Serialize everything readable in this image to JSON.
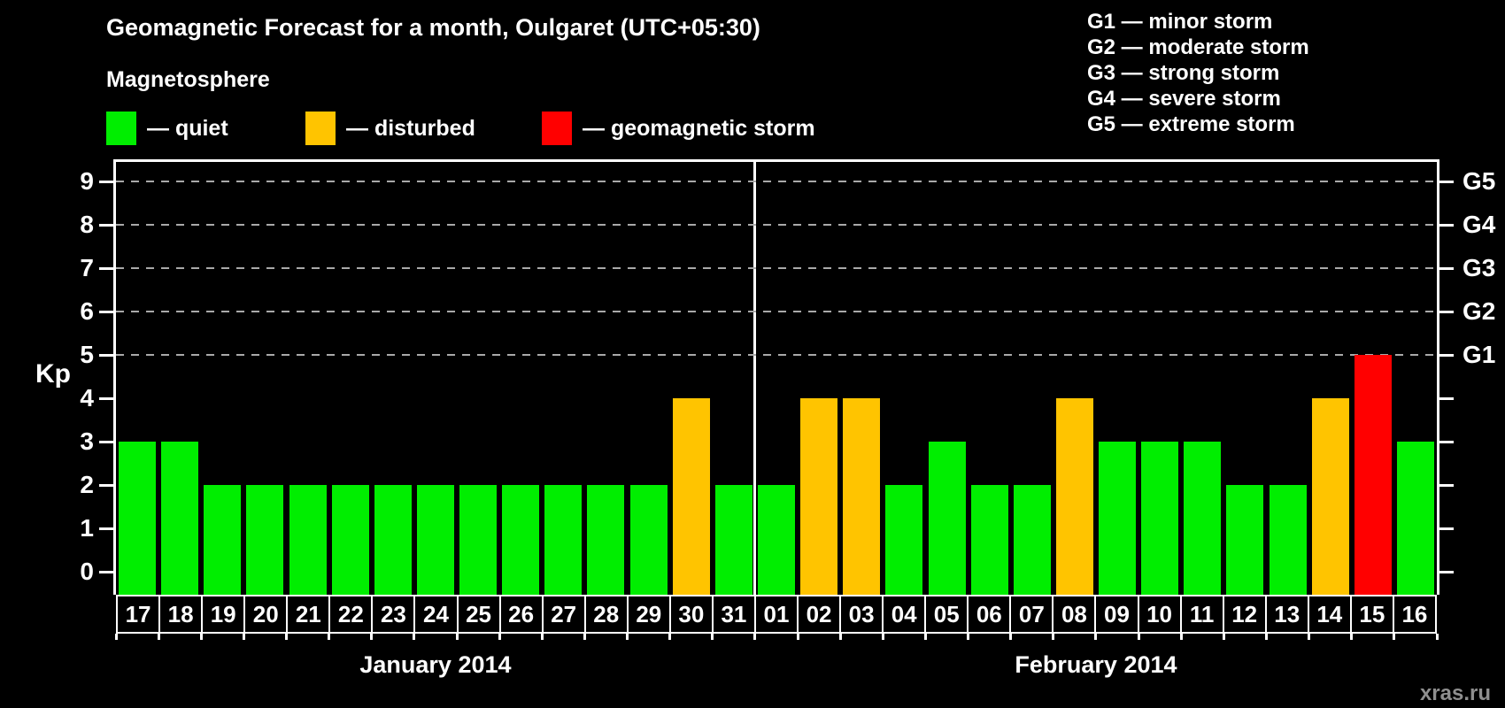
{
  "title": "Geomagnetic Forecast for a month, Oulgaret (UTC+05:30)",
  "legend": {
    "heading": "Magnetosphere",
    "items": [
      {
        "state": "quiet",
        "label": "— quiet",
        "color": "#00ee00"
      },
      {
        "state": "disturbed",
        "label": "— disturbed",
        "color": "#ffc400"
      },
      {
        "state": "storm",
        "label": "— geomagnetic storm",
        "color": "#ff0000"
      }
    ]
  },
  "storm_scale": [
    "G1 — minor storm",
    "G2 — moderate storm",
    "G3 — strong storm",
    "G4 — severe storm",
    "G5 — extreme storm"
  ],
  "watermark": "xras.ru",
  "chart_data": {
    "type": "bar",
    "ylabel": "Kp",
    "ylim": [
      0,
      9
    ],
    "yticks": [
      0,
      1,
      2,
      3,
      4,
      5,
      6,
      7,
      8,
      9
    ],
    "gridlines_at": [
      5,
      6,
      7,
      8,
      9
    ],
    "grid": "dashed, only at Kp 5-9",
    "right_axis": [
      {
        "kp": 5,
        "label": "G1"
      },
      {
        "kp": 6,
        "label": "G2"
      },
      {
        "kp": 7,
        "label": "G3"
      },
      {
        "kp": 8,
        "label": "G4"
      },
      {
        "kp": 9,
        "label": "G5"
      }
    ],
    "colors": {
      "quiet": "#00ee00",
      "disturbed": "#ffc400",
      "storm": "#ff0000"
    },
    "groups": [
      {
        "label": "January 2014",
        "days": [
          "17",
          "18",
          "19",
          "20",
          "21",
          "22",
          "23",
          "24",
          "25",
          "26",
          "27",
          "28",
          "29",
          "30",
          "31"
        ],
        "values": [
          3,
          3,
          2,
          2,
          2,
          2,
          2,
          2,
          2,
          2,
          2,
          2,
          2,
          4,
          2
        ],
        "states": [
          "quiet",
          "quiet",
          "quiet",
          "quiet",
          "quiet",
          "quiet",
          "quiet",
          "quiet",
          "quiet",
          "quiet",
          "quiet",
          "quiet",
          "quiet",
          "disturbed",
          "quiet"
        ]
      },
      {
        "label": "February 2014",
        "days": [
          "01",
          "02",
          "03",
          "04",
          "05",
          "06",
          "07",
          "08",
          "09",
          "10",
          "11",
          "12",
          "13",
          "14",
          "15",
          "16"
        ],
        "values": [
          2,
          4,
          4,
          2,
          3,
          2,
          2,
          4,
          3,
          3,
          3,
          2,
          2,
          4,
          5,
          3
        ],
        "states": [
          "quiet",
          "disturbed",
          "disturbed",
          "quiet",
          "quiet",
          "quiet",
          "quiet",
          "disturbed",
          "quiet",
          "quiet",
          "quiet",
          "quiet",
          "quiet",
          "disturbed",
          "storm",
          "quiet"
        ]
      }
    ]
  }
}
